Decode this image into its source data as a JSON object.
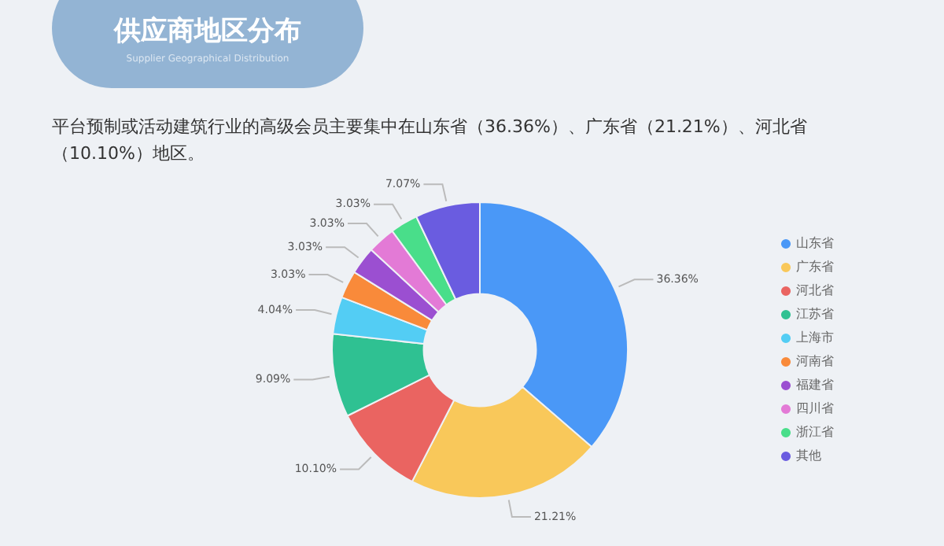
{
  "chart_data": {
    "type": "donut",
    "title": "供应商地区分布",
    "subtitle": "Supplier Geographical Distribution",
    "annotations": [
      "平台预制或活动建筑行业的高级会员主要集中在山东省（36.36%）、广东省（21.21%）、河北省（10.10%）地区。"
    ],
    "categories": [
      "山东省",
      "广东省",
      "河北省",
      "江苏省",
      "上海市",
      "河南省",
      "福建省",
      "四川省",
      "浙江省",
      "其他"
    ],
    "values": [
      36.36,
      21.21,
      10.1,
      9.09,
      4.04,
      3.03,
      3.03,
      3.03,
      3.03,
      7.07
    ],
    "value_labels": [
      "36.36%",
      "21.21%",
      "10.10%",
      "9.09%",
      "4.04%",
      "3.03%",
      "3.03%",
      "3.03%",
      "3.03%",
      "7.07%"
    ],
    "colors": [
      "#4a98f7",
      "#f9c85a",
      "#ea6461",
      "#2fc192",
      "#53cdf4",
      "#f98a3a",
      "#9b4fd1",
      "#e37ad6",
      "#49de8a",
      "#6a5ce0"
    ],
    "legend": "right"
  }
}
